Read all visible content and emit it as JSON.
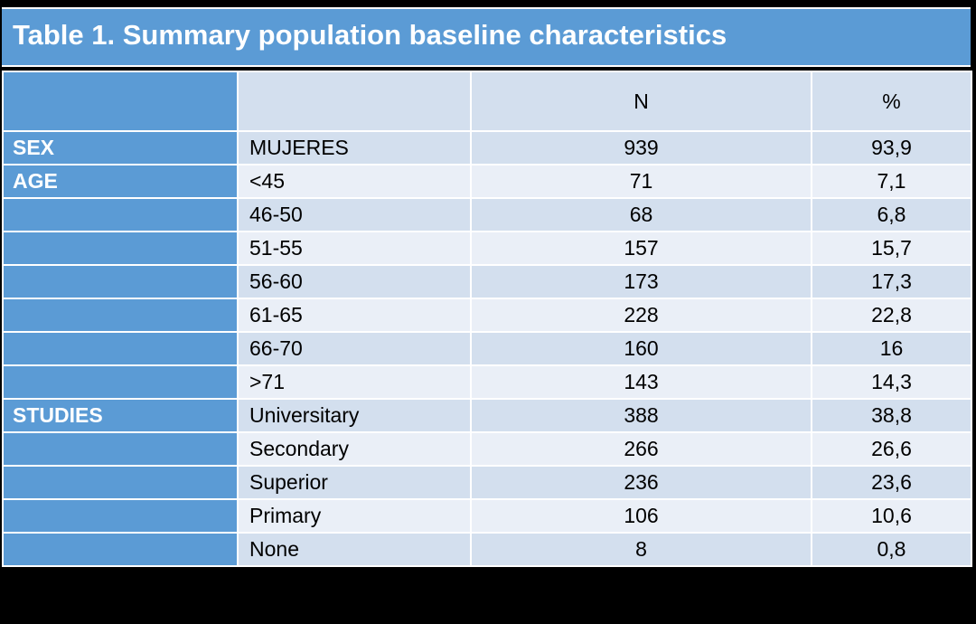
{
  "title": "Table 1. Summary population baseline characteristics",
  "columns": {
    "category": "",
    "subcategory": "",
    "n": "N",
    "percent": "%"
  },
  "rows": [
    {
      "category": "SEX",
      "subcategory": "MUJERES",
      "n": "939",
      "percent": "93,9"
    },
    {
      "category": "AGE",
      "subcategory": "<45",
      "n": "71",
      "percent": "7,1"
    },
    {
      "category": "",
      "subcategory": "46-50",
      "n": "68",
      "percent": "6,8"
    },
    {
      "category": "",
      "subcategory": "51-55",
      "n": "157",
      "percent": "15,7"
    },
    {
      "category": "",
      "subcategory": "56-60",
      "n": "173",
      "percent": "17,3"
    },
    {
      "category": "",
      "subcategory": "61-65",
      "n": "228",
      "percent": "22,8"
    },
    {
      "category": "",
      "subcategory": "66-70",
      "n": "160",
      "percent": "16"
    },
    {
      "category": "",
      "subcategory": ">71",
      "n": "143",
      "percent": "14,3"
    },
    {
      "category": "STUDIES",
      "subcategory": "Universitary",
      "n": "388",
      "percent": "38,8"
    },
    {
      "category": "",
      "subcategory": "Secondary",
      "n": "266",
      "percent": "26,6"
    },
    {
      "category": "",
      "subcategory": "Superior",
      "n": "236",
      "percent": "23,6"
    },
    {
      "category": "",
      "subcategory": "Primary",
      "n": "106",
      "percent": "10,6"
    },
    {
      "category": "",
      "subcategory": "None",
      "n": "8",
      "percent": "0,8"
    }
  ],
  "colors": {
    "header_blue": "#5b9bd5",
    "row_dark": "#d3dfee",
    "row_light": "#eaeff7",
    "background": "#000000"
  }
}
